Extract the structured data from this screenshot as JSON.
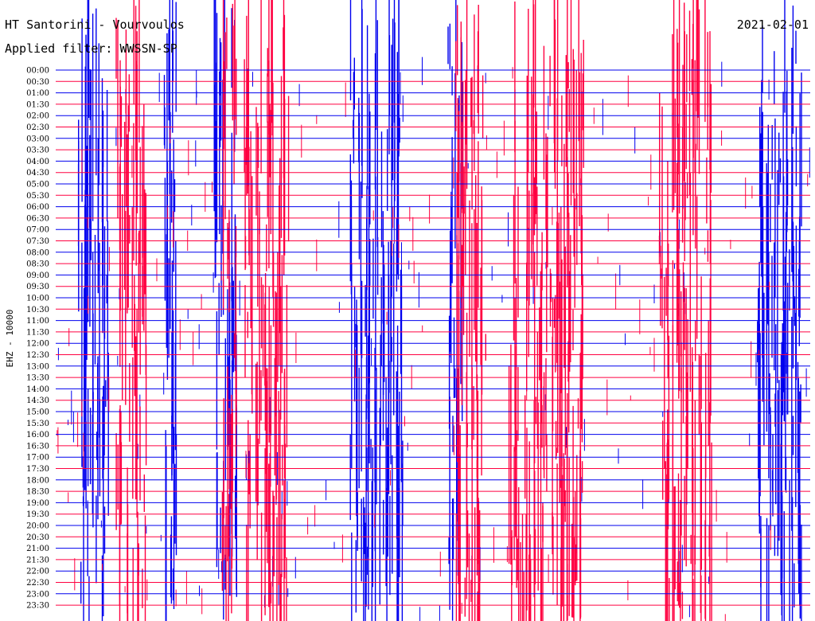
{
  "header": {
    "station": "HT Santorini - Vourvoulos",
    "filter": "Applied filter: WWSSN-SP",
    "date": "2021-02-01"
  },
  "axis": {
    "channel_label": "EHZ - 10000"
  },
  "colors": {
    "trace_a": "#0000ee",
    "trace_b": "#ff0040",
    "background": "#ffffff"
  },
  "chart_data": {
    "type": "line",
    "title": "",
    "ylabel": "EHZ - 10000",
    "rows": [
      "00:00",
      "00:30",
      "01:00",
      "01:30",
      "02:00",
      "02:30",
      "03:00",
      "03:30",
      "04:00",
      "04:30",
      "05:00",
      "05:30",
      "06:00",
      "06:30",
      "07:00",
      "07:30",
      "08:00",
      "08:30",
      "09:00",
      "09:30",
      "10:00",
      "10:30",
      "11:00",
      "11:30",
      "12:00",
      "12:30",
      "13:00",
      "13:30",
      "14:00",
      "14:30",
      "15:00",
      "15:30",
      "16:00",
      "16:30",
      "17:00",
      "17:30",
      "18:00",
      "18:30",
      "19:00",
      "19:30",
      "20:00",
      "20:30",
      "21:00",
      "21:30",
      "22:00",
      "22:30",
      "23:00",
      "23:30"
    ],
    "row_colors": [
      "trace_a",
      "trace_b"
    ],
    "series": [
      {
        "color_key": "trace_a",
        "bands": [
          [
            0.03,
            0.07
          ],
          [
            0.14,
            0.16
          ],
          [
            0.21,
            0.24
          ],
          [
            0.39,
            0.46
          ],
          [
            0.52,
            0.54
          ],
          [
            0.93,
            0.99
          ]
        ]
      },
      {
        "color_key": "trace_b",
        "bands": [
          [
            0.08,
            0.12
          ],
          [
            0.22,
            0.24
          ],
          [
            0.25,
            0.31
          ],
          [
            0.53,
            0.57
          ],
          [
            0.6,
            0.7
          ],
          [
            0.8,
            0.87
          ]
        ]
      }
    ]
  }
}
